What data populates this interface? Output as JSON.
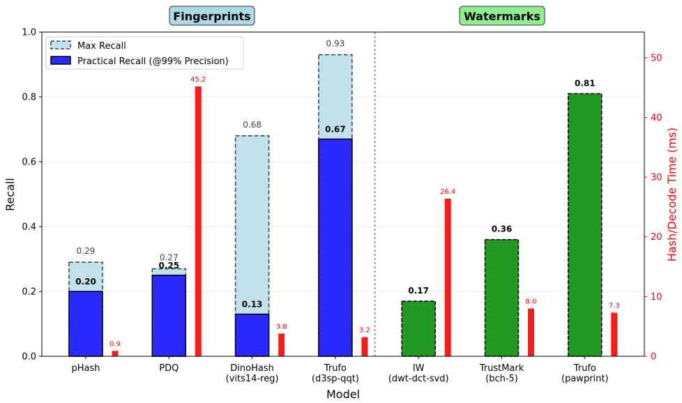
{
  "chart_data": {
    "type": "bar",
    "title": "",
    "xlabel": "Model",
    "ylabel": "Recall",
    "y2label": "Hash/Decode Time (ms)",
    "ylim": [
      0,
      1.0
    ],
    "y2lim": [
      0,
      54.3
    ],
    "yticks": [
      "0.0",
      "0.2",
      "0.4",
      "0.6",
      "0.8",
      "1.0"
    ],
    "y2ticks": [
      "0",
      "10",
      "20",
      "30",
      "40",
      "50"
    ],
    "grid": "horizontal, light",
    "legend": {
      "position": "top-left",
      "entries": [
        "Max Recall",
        "Practical Recall (@99% Precision)"
      ]
    },
    "groups": [
      {
        "label": "Fingerprints",
        "bg": "#add8e6"
      },
      {
        "label": "Watermarks",
        "bg": "#90ee90"
      }
    ],
    "categories": [
      [
        "pHash"
      ],
      [
        "PDQ"
      ],
      [
        "DinoHash",
        "(vits14-reg)"
      ],
      [
        "Trufo",
        "(d3sp-qqt)"
      ],
      [
        "IW",
        "(dwt-dct-svd)"
      ],
      [
        "TrustMark",
        "(bch-5)"
      ],
      [
        "Trufo",
        "(pawprint)"
      ]
    ],
    "series": [
      {
        "name": "Max Recall",
        "values": [
          0.29,
          0.27,
          0.68,
          0.93,
          null,
          null,
          null
        ],
        "labels": [
          "0.29",
          "0.27",
          "0.68",
          "0.93",
          "",
          "",
          ""
        ]
      },
      {
        "name": "Practical Recall (@99% Precision)",
        "values": [
          0.2,
          0.25,
          0.13,
          0.67,
          0.17,
          0.36,
          0.81
        ],
        "labels": [
          "0.20",
          "0.25",
          "0.13",
          "0.67",
          "0.17",
          "0.36",
          "0.81"
        ]
      },
      {
        "name": "Hash/Decode Time (ms)",
        "axis": "right",
        "values": [
          0.9,
          45.2,
          3.8,
          3.2,
          26.4,
          8.0,
          7.3
        ],
        "labels": [
          "0.9",
          "45.2",
          "3.8",
          "3.2",
          "26.4",
          "8.0",
          "7.3"
        ]
      }
    ],
    "colors": {
      "max_recall_fill": "#c3e1ea",
      "practical_fingerprint": "#2a2aff",
      "practical_watermark": "#229922",
      "time_bar": "#ff1a1a",
      "right_axis": "#ff0000"
    }
  }
}
